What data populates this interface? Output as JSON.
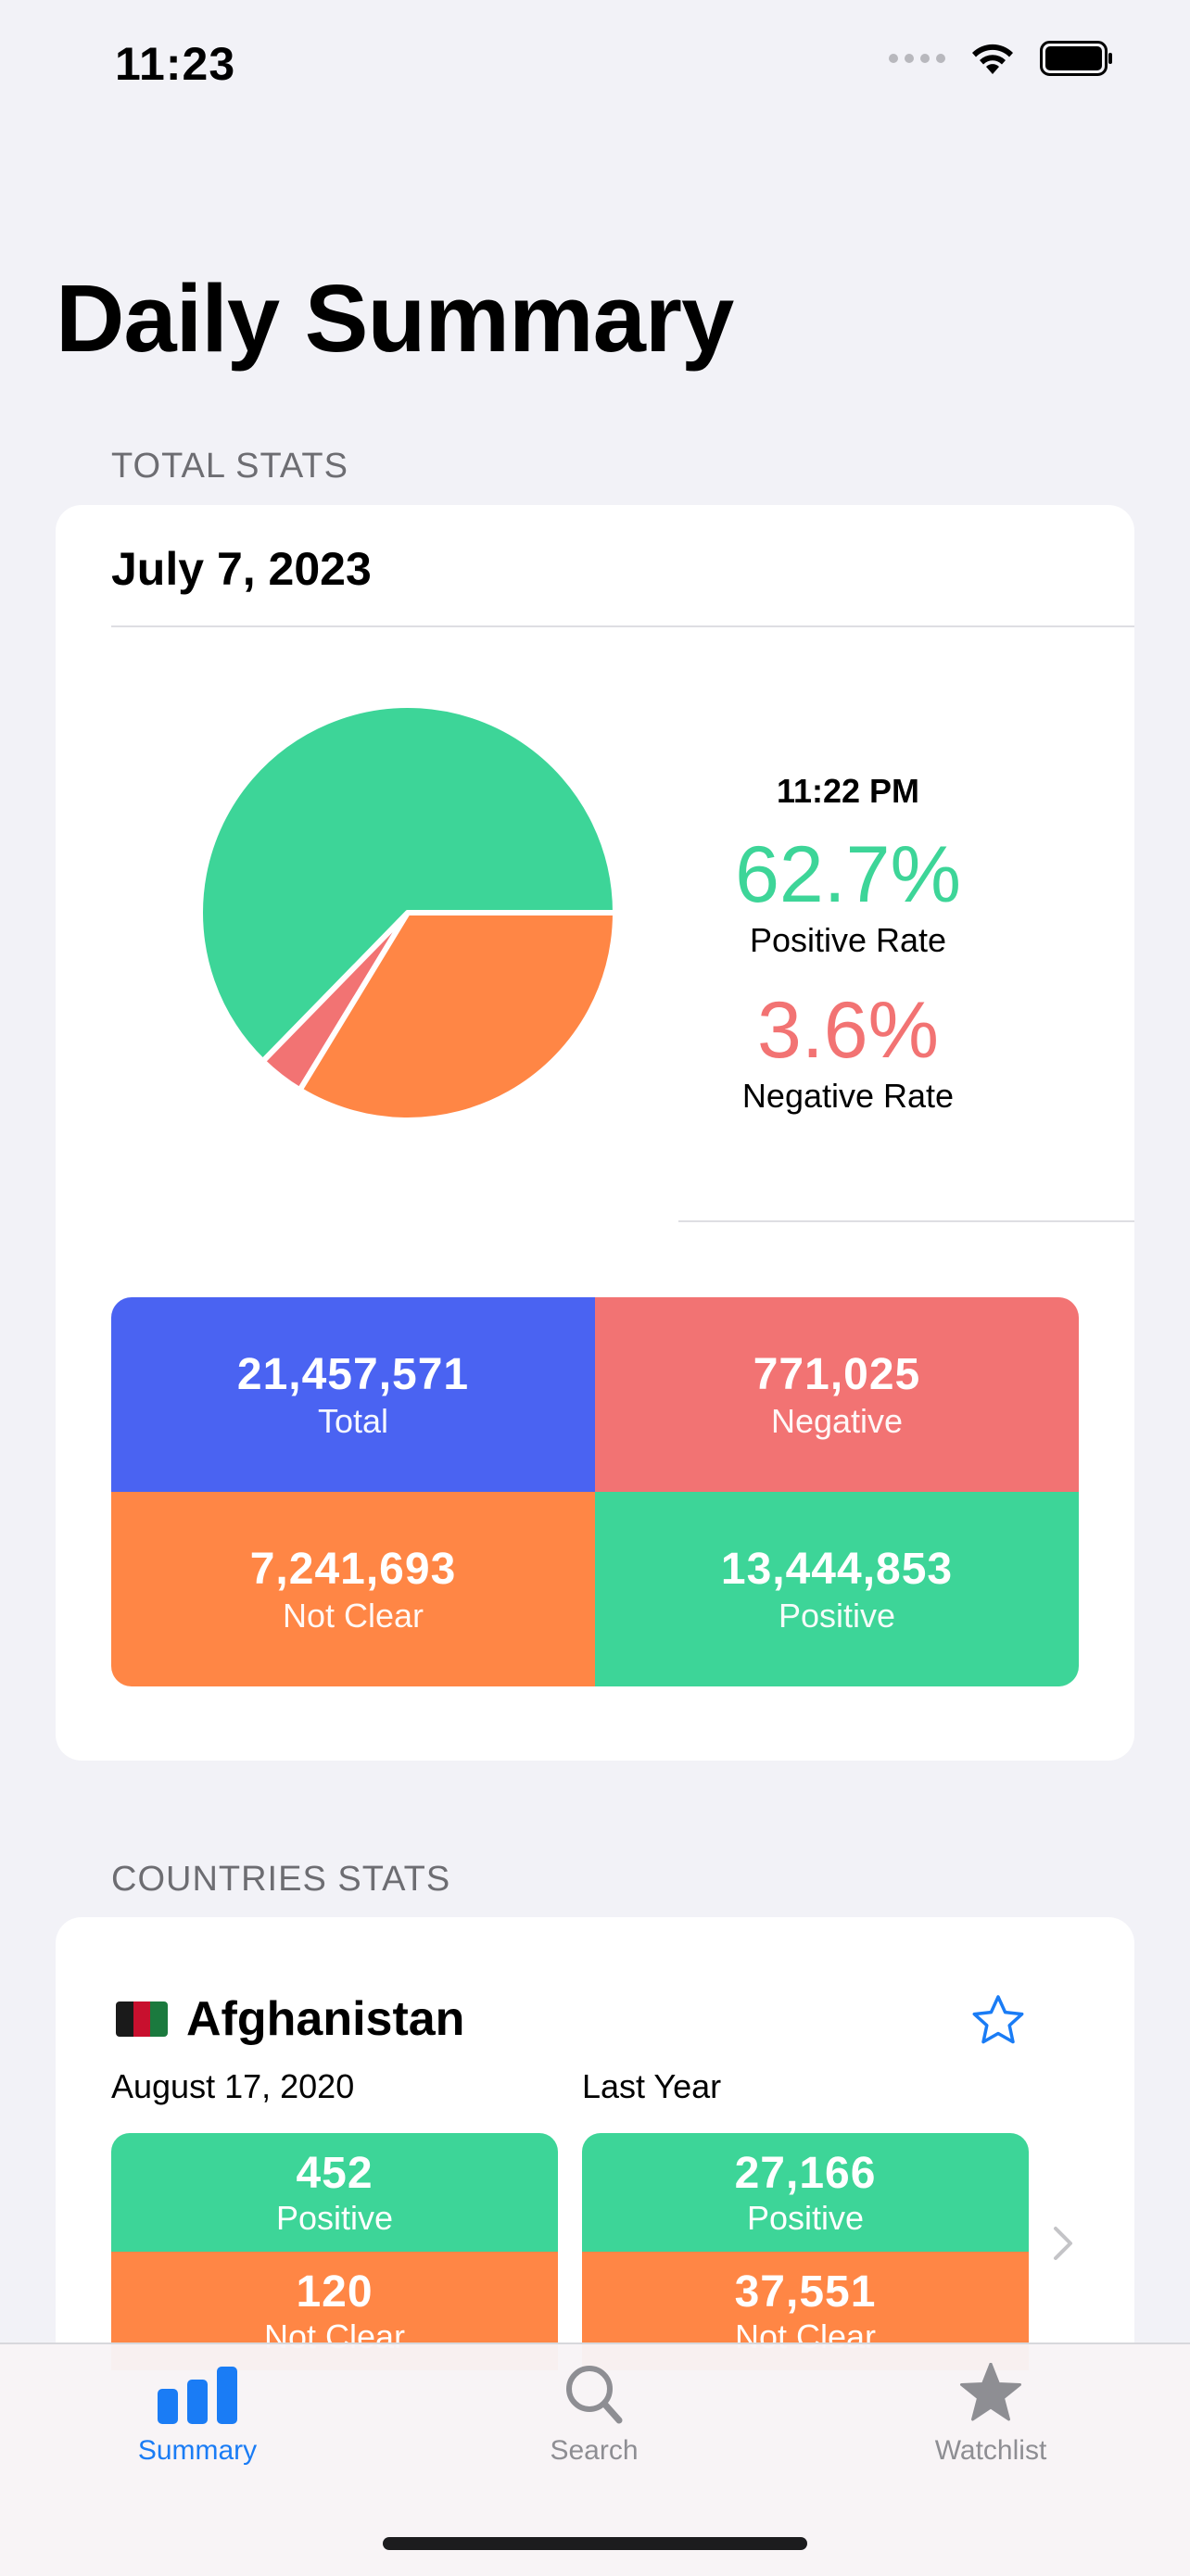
{
  "status_bar": {
    "time": "11:23"
  },
  "title": "Daily Summary",
  "total_stats": {
    "section_label": "TOTAL STATS",
    "date": "July 7, 2023",
    "update_time": "11:22 PM",
    "positive_rate": "62.7%",
    "positive_rate_label": "Positive Rate",
    "negative_rate": "3.6%",
    "negative_rate_label": "Negative Rate",
    "pie": {
      "positive_pct": 62.7,
      "negative_pct": 3.6,
      "not_clear_pct": 33.7
    },
    "stats": [
      {
        "value": "21,457,571",
        "label": "Total",
        "color": "#4a63f2"
      },
      {
        "value": "771,025",
        "label": "Negative",
        "color": "#f27373"
      },
      {
        "value": "7,241,693",
        "label": "Not Clear",
        "color": "#ff8645"
      },
      {
        "value": "13,444,853",
        "label": "Positive",
        "color": "#3dd598"
      }
    ]
  },
  "countries_stats": {
    "section_label": "COUNTRIES STATS",
    "country": {
      "name": "Afghanistan",
      "left_column": {
        "header": "August 17, 2020",
        "positive_value": "452",
        "positive_label": "Positive",
        "not_clear_value": "120",
        "not_clear_label": "Not Clear"
      },
      "right_column": {
        "header": "Last Year",
        "positive_value": "27,166",
        "positive_label": "Positive",
        "not_clear_value": "37,551",
        "not_clear_label": "Not Clear"
      }
    }
  },
  "tabs": [
    {
      "label": "Summary",
      "icon": "chart-bars-icon",
      "active": true
    },
    {
      "label": "Search",
      "icon": "magnifier-icon",
      "active": false
    },
    {
      "label": "Watchlist",
      "icon": "star-icon",
      "active": false
    }
  ],
  "colors": {
    "positive": "#3dd598",
    "negative": "#f27373",
    "not_clear": "#ff8645",
    "total": "#4a63f2",
    "accent": "#1a7cf5"
  }
}
